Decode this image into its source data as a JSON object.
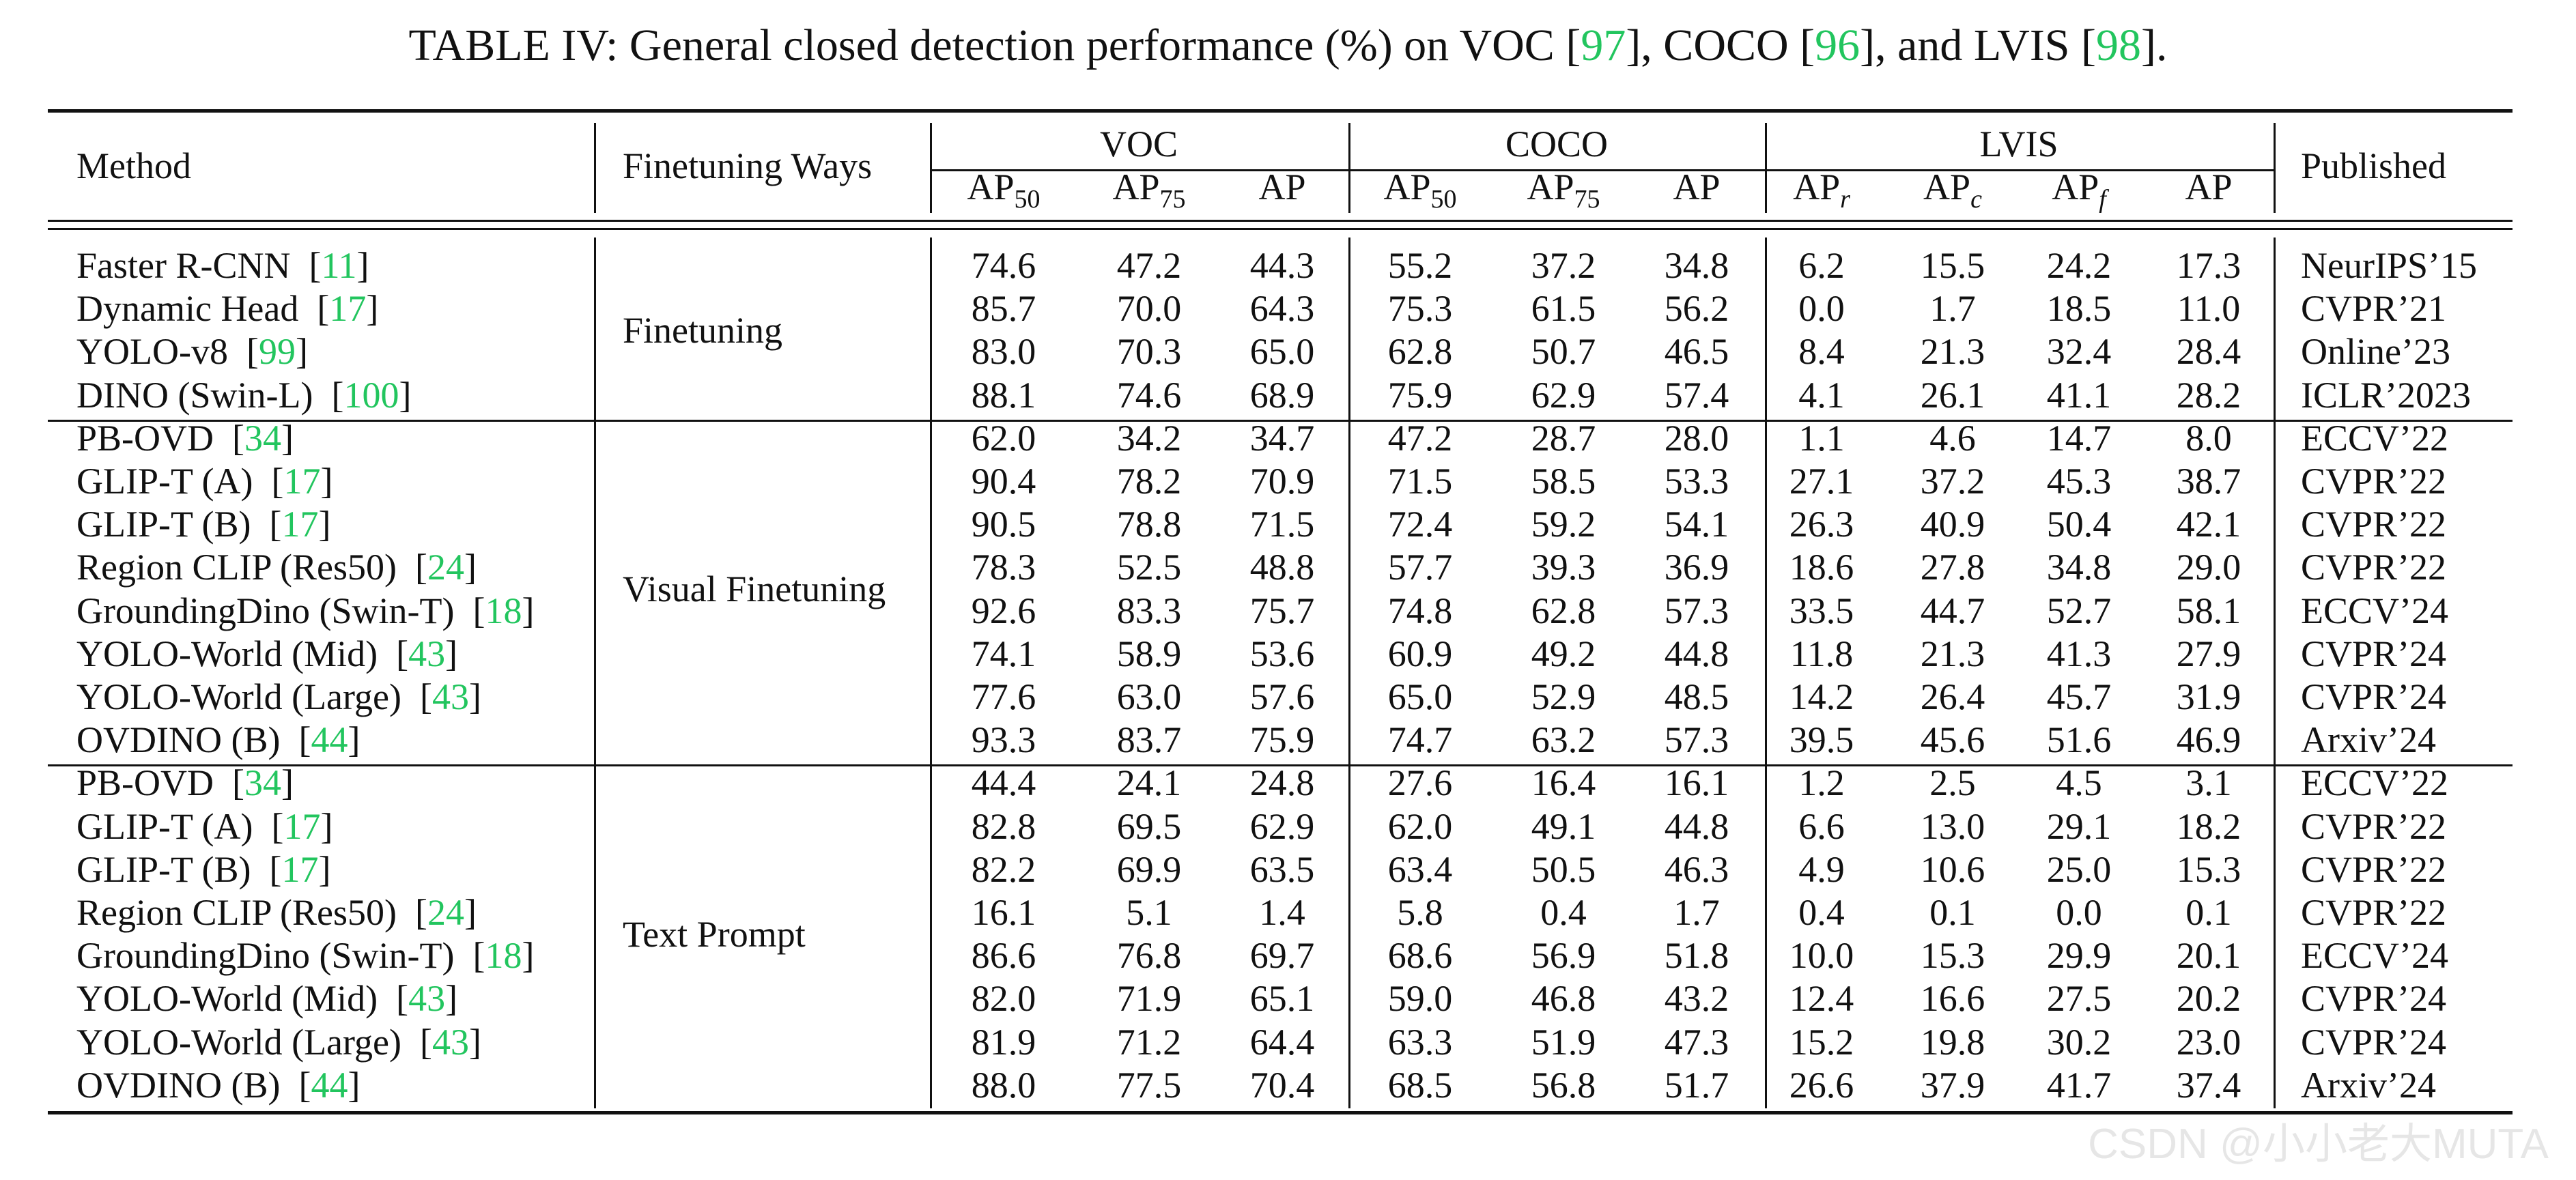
{
  "caption": {
    "prefix": "TABLE IV: General closed detection performance (%) on VOC [",
    "ref1": "97",
    "mid1": "], COCO [",
    "ref2": "96",
    "mid2": "], and LVIS [",
    "ref3": "98",
    "suffix": "]."
  },
  "header": {
    "method": "Method",
    "finetuning": "Finetuning Ways",
    "published": "Published",
    "groups": [
      "VOC",
      "COCO",
      "LVIS"
    ],
    "metrics": [
      {
        "base": "AP",
        "sub": "50",
        "italic": false
      },
      {
        "base": "AP",
        "sub": "75",
        "italic": false
      },
      {
        "base": "AP",
        "sub": "",
        "italic": false
      },
      {
        "base": "AP",
        "sub": "50",
        "italic": false
      },
      {
        "base": "AP",
        "sub": "75",
        "italic": false
      },
      {
        "base": "AP",
        "sub": "",
        "italic": false
      },
      {
        "base": "AP",
        "sub": "r",
        "italic": true
      },
      {
        "base": "AP",
        "sub": "c",
        "italic": true
      },
      {
        "base": "AP",
        "sub": "f",
        "italic": true
      },
      {
        "base": "AP",
        "sub": "",
        "italic": false
      }
    ]
  },
  "sections": [
    {
      "way": "Finetuning",
      "rows": [
        {
          "method": "Faster R-CNN",
          "ref": "11",
          "values": [
            "74.6",
            "47.2",
            "44.3",
            "55.2",
            "37.2",
            "34.8",
            "6.2",
            "15.5",
            "24.2",
            "17.3"
          ],
          "published": "NeurIPS’15"
        },
        {
          "method": "Dynamic Head",
          "ref": "17",
          "values": [
            "85.7",
            "70.0",
            "64.3",
            "75.3",
            "61.5",
            "56.2",
            "0.0",
            "1.7",
            "18.5",
            "11.0"
          ],
          "published": "CVPR’21"
        },
        {
          "method": "YOLO-v8",
          "ref": "99",
          "values": [
            "83.0",
            "70.3",
            "65.0",
            "62.8",
            "50.7",
            "46.5",
            "8.4",
            "21.3",
            "32.4",
            "28.4"
          ],
          "published": "Online’23"
        },
        {
          "method": "DINO (Swin-L)",
          "ref": "100",
          "values": [
            "88.1",
            "74.6",
            "68.9",
            "75.9",
            "62.9",
            "57.4",
            "4.1",
            "26.1",
            "41.1",
            "28.2"
          ],
          "published": "ICLR’2023"
        }
      ]
    },
    {
      "way": "Visual Finetuning",
      "rows": [
        {
          "method": "PB-OVD",
          "ref": "34",
          "values": [
            "62.0",
            "34.2",
            "34.7",
            "47.2",
            "28.7",
            "28.0",
            "1.1",
            "4.6",
            "14.7",
            "8.0"
          ],
          "published": "ECCV’22"
        },
        {
          "method": "GLIP-T (A)",
          "ref": "17",
          "values": [
            "90.4",
            "78.2",
            "70.9",
            "71.5",
            "58.5",
            "53.3",
            "27.1",
            "37.2",
            "45.3",
            "38.7"
          ],
          "published": "CVPR’22"
        },
        {
          "method": "GLIP-T (B)",
          "ref": "17",
          "values": [
            "90.5",
            "78.8",
            "71.5",
            "72.4",
            "59.2",
            "54.1",
            "26.3",
            "40.9",
            "50.4",
            "42.1"
          ],
          "published": "CVPR’22"
        },
        {
          "method": "Region CLIP (Res50)",
          "ref": "24",
          "values": [
            "78.3",
            "52.5",
            "48.8",
            "57.7",
            "39.3",
            "36.9",
            "18.6",
            "27.8",
            "34.8",
            "29.0"
          ],
          "published": "CVPR’22"
        },
        {
          "method": "GroundingDino (Swin-T)",
          "ref": "18",
          "values": [
            "92.6",
            "83.3",
            "75.7",
            "74.8",
            "62.8",
            "57.3",
            "33.5",
            "44.7",
            "52.7",
            "58.1"
          ],
          "published": "ECCV’24"
        },
        {
          "method": "YOLO-World (Mid)",
          "ref": "43",
          "values": [
            "74.1",
            "58.9",
            "53.6",
            "60.9",
            "49.2",
            "44.8",
            "11.8",
            "21.3",
            "41.3",
            "27.9"
          ],
          "published": "CVPR’24"
        },
        {
          "method": "YOLO-World (Large)",
          "ref": "43",
          "values": [
            "77.6",
            "63.0",
            "57.6",
            "65.0",
            "52.9",
            "48.5",
            "14.2",
            "26.4",
            "45.7",
            "31.9"
          ],
          "published": "CVPR’24"
        },
        {
          "method": "OVDINO (B)",
          "ref": "44",
          "values": [
            "93.3",
            "83.7",
            "75.9",
            "74.7",
            "63.2",
            "57.3",
            "39.5",
            "45.6",
            "51.6",
            "46.9"
          ],
          "published": "Arxiv’24"
        }
      ]
    },
    {
      "way": "Text Prompt",
      "rows": [
        {
          "method": "PB-OVD",
          "ref": "34",
          "values": [
            "44.4",
            "24.1",
            "24.8",
            "27.6",
            "16.4",
            "16.1",
            "1.2",
            "2.5",
            "4.5",
            "3.1"
          ],
          "published": "ECCV’22"
        },
        {
          "method": "GLIP-T (A)",
          "ref": "17",
          "values": [
            "82.8",
            "69.5",
            "62.9",
            "62.0",
            "49.1",
            "44.8",
            "6.6",
            "13.0",
            "29.1",
            "18.2"
          ],
          "published": "CVPR’22"
        },
        {
          "method": "GLIP-T (B)",
          "ref": "17",
          "values": [
            "82.2",
            "69.9",
            "63.5",
            "63.4",
            "50.5",
            "46.3",
            "4.9",
            "10.6",
            "25.0",
            "15.3"
          ],
          "published": "CVPR’22"
        },
        {
          "method": "Region CLIP (Res50)",
          "ref": "24",
          "values": [
            "16.1",
            "5.1",
            "1.4",
            "5.8",
            "0.4",
            "1.7",
            "0.4",
            "0.1",
            "0.0",
            "0.1"
          ],
          "published": "CVPR’22"
        },
        {
          "method": "GroundingDino (Swin-T)",
          "ref": "18",
          "values": [
            "86.6",
            "76.8",
            "69.7",
            "68.6",
            "56.9",
            "51.8",
            "10.0",
            "15.3",
            "29.9",
            "20.1"
          ],
          "published": "ECCV’24"
        },
        {
          "method": "YOLO-World (Mid)",
          "ref": "43",
          "values": [
            "82.0",
            "71.9",
            "65.1",
            "59.0",
            "46.8",
            "43.2",
            "12.4",
            "16.6",
            "27.5",
            "20.2"
          ],
          "published": "CVPR’24"
        },
        {
          "method": "YOLO-World (Large)",
          "ref": "43",
          "values": [
            "81.9",
            "71.2",
            "64.4",
            "63.3",
            "51.9",
            "47.3",
            "15.2",
            "19.8",
            "30.2",
            "23.0"
          ],
          "published": "CVPR’24"
        },
        {
          "method": "OVDINO (B)",
          "ref": "44",
          "values": [
            "88.0",
            "77.5",
            "70.4",
            "68.5",
            "56.8",
            "51.7",
            "26.6",
            "37.9",
            "41.7",
            "37.4"
          ],
          "published": "Arxiv’24"
        }
      ]
    }
  ],
  "watermark": "CSDN @小小老大MUTA"
}
